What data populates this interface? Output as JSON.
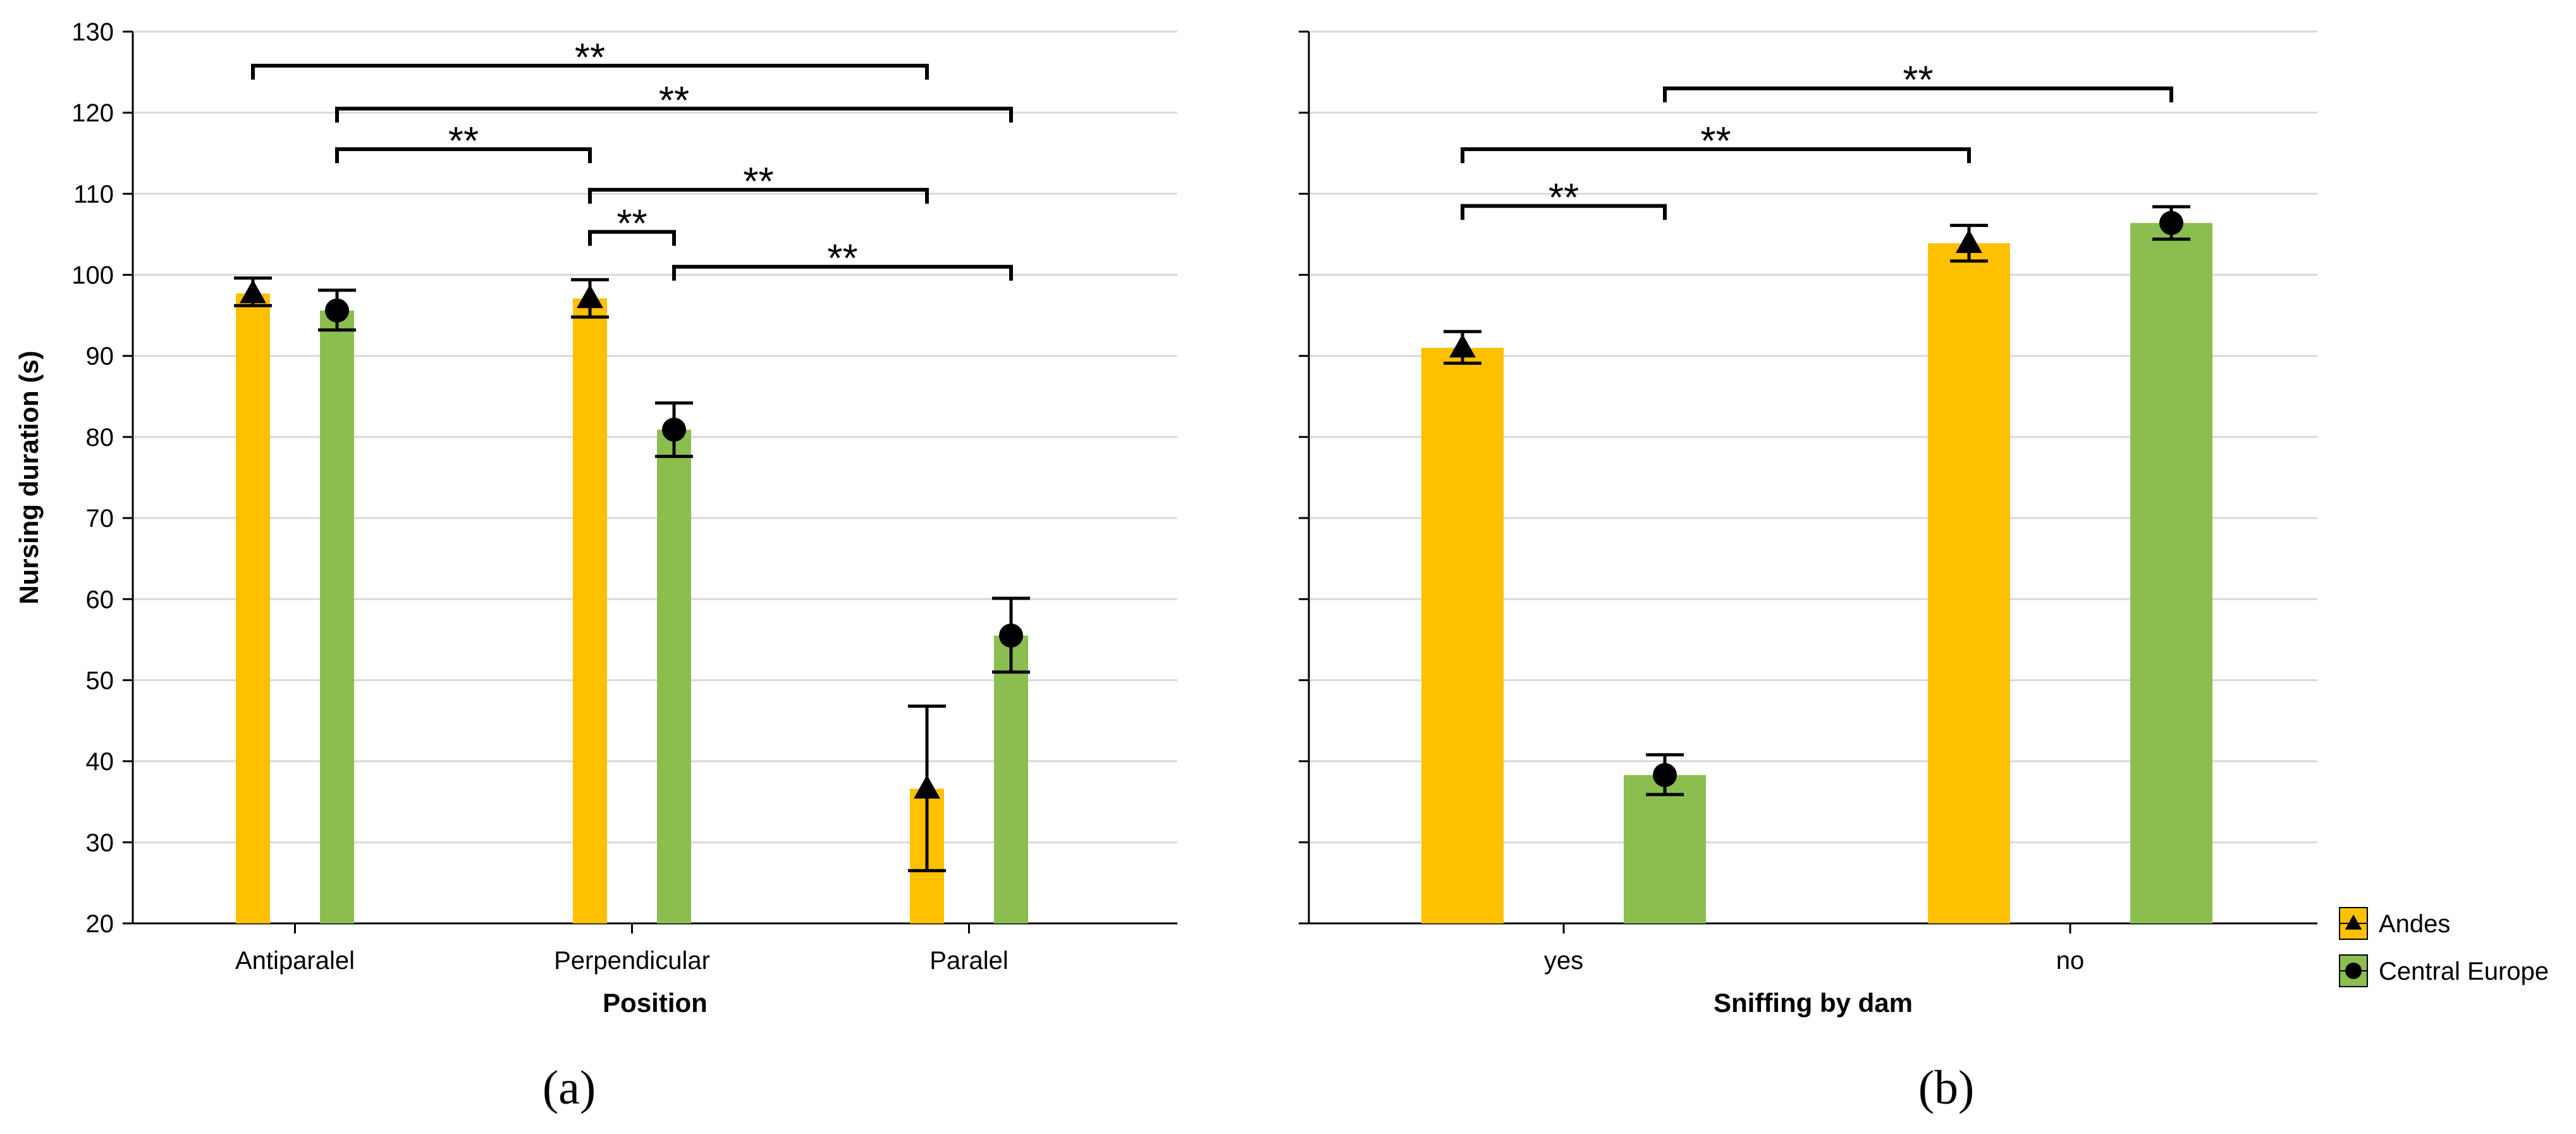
{
  "colors": {
    "andes": "#FFC000",
    "central_europe": "#8BBE4F",
    "grid": "#D9D9D9",
    "axis": "#000000"
  },
  "legend": {
    "items": [
      {
        "label": "Andes",
        "marker": "triangle",
        "color": "#FFC000"
      },
      {
        "label": "Central Europe",
        "marker": "circle",
        "color": "#8BBE4F"
      }
    ]
  },
  "chart_data": [
    {
      "type": "bar",
      "panel_label": "(a)",
      "xlabel": "Position",
      "ylabel": "Nursing duration (s)",
      "ylim": [
        20,
        130
      ],
      "yticks": [
        20,
        30,
        40,
        50,
        60,
        70,
        80,
        90,
        100,
        110,
        120,
        130
      ],
      "grid": true,
      "categories": [
        "Antiparalel",
        "Perpendicular",
        "Paralel"
      ],
      "series": [
        {
          "name": "Andes",
          "marker": "triangle",
          "values": [
            97.7,
            97.1,
            36.6
          ],
          "err_low": [
            96.2,
            94.8,
            26.5
          ],
          "err_high": [
            99.6,
            99.4,
            46.8
          ]
        },
        {
          "name": "Central Europe",
          "marker": "circle",
          "values": [
            95.6,
            80.9,
            55.5
          ],
          "err_low": [
            93.2,
            77.6,
            51.0
          ],
          "err_high": [
            98.1,
            84.2,
            60.1
          ]
        }
      ],
      "significance": [
        {
          "from": [
            0,
            0
          ],
          "to": [
            2,
            0
          ],
          "y": 125.8,
          "label": "**"
        },
        {
          "from": [
            0,
            1
          ],
          "to": [
            2,
            1
          ],
          "y": 120.5,
          "label": "**"
        },
        {
          "from": [
            0,
            1
          ],
          "to": [
            1,
            0
          ],
          "y": 115.5,
          "label": "**"
        },
        {
          "from": [
            1,
            0
          ],
          "to": [
            2,
            0
          ],
          "y": 110.5,
          "label": "**"
        },
        {
          "from": [
            1,
            0
          ],
          "to": [
            1,
            1
          ],
          "y": 105.3,
          "label": "**"
        },
        {
          "from": [
            1,
            1
          ],
          "to": [
            2,
            1
          ],
          "y": 101.0,
          "label": "**"
        }
      ]
    },
    {
      "type": "bar",
      "panel_label": "(b)",
      "xlabel": "Sniffing by dam",
      "ylabel": "",
      "ylim": [
        20,
        130
      ],
      "grid": true,
      "categories": [
        "yes",
        "no"
      ],
      "series": [
        {
          "name": "Andes",
          "marker": "triangle",
          "values": [
            91.0,
            103.9
          ],
          "err_low": [
            89.1,
            101.7
          ],
          "err_high": [
            93.0,
            106.1
          ]
        },
        {
          "name": "Central Europe",
          "marker": "circle",
          "values": [
            38.3,
            106.4
          ],
          "err_low": [
            35.9,
            104.4
          ],
          "err_high": [
            40.8,
            108.4
          ]
        }
      ],
      "significance": [
        {
          "from": [
            0,
            1
          ],
          "to": [
            1,
            1
          ],
          "y": 123.0,
          "label": "**"
        },
        {
          "from": [
            0,
            0
          ],
          "to": [
            1,
            0
          ],
          "y": 115.5,
          "label": "**"
        },
        {
          "from": [
            0,
            0
          ],
          "to": [
            0,
            1
          ],
          "y": 108.5,
          "label": "**"
        }
      ]
    }
  ]
}
